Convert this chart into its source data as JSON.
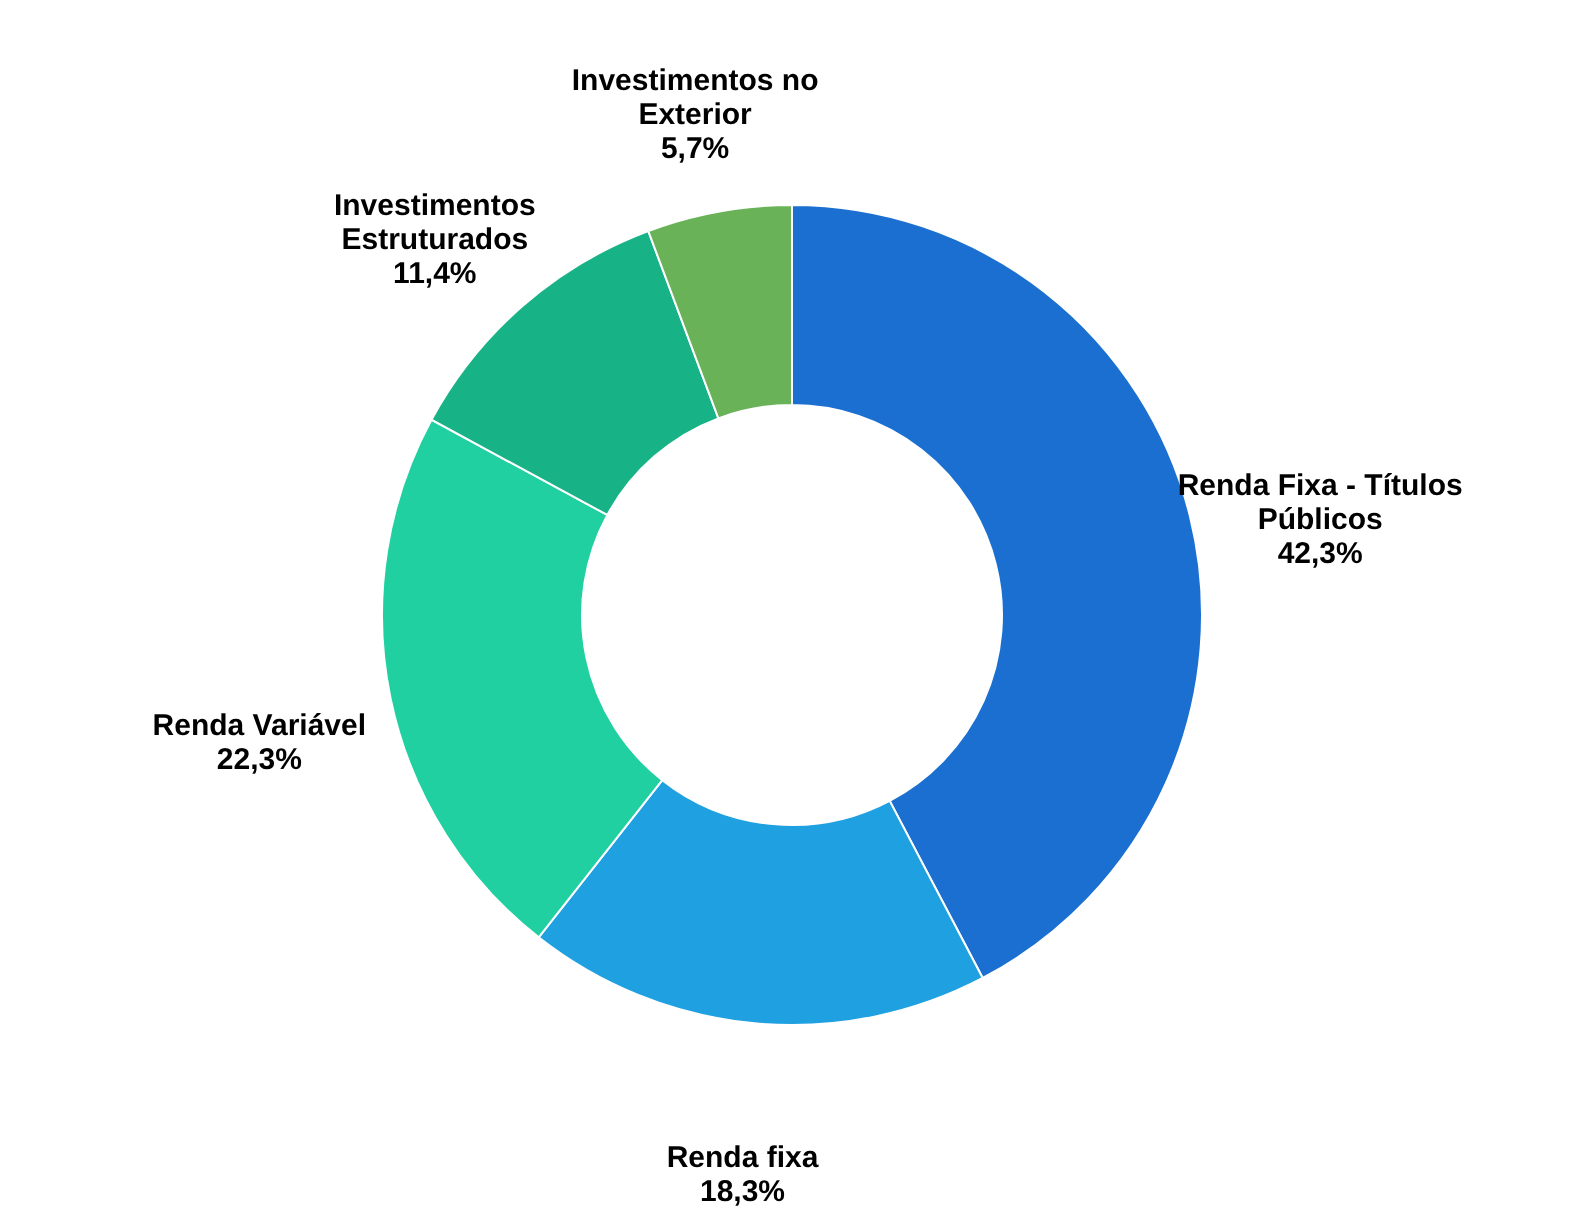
{
  "chart_data": {
    "type": "donut",
    "categories": [
      "Renda Fixa - Títulos Públicos",
      "Renda fixa",
      "Renda Variável",
      "Investimentos Estruturados",
      "Investimentos no Exterior"
    ],
    "values": [
      42.3,
      18.3,
      22.3,
      11.4,
      5.7
    ],
    "value_labels": [
      "42,3%",
      "18,3%",
      "22,3%",
      "11,4%",
      "5,7%"
    ],
    "colors": [
      "#1a6fd0",
      "#1fa0e0",
      "#20d0a0",
      "#17b386",
      "#6ab257"
    ],
    "legend": false
  }
}
